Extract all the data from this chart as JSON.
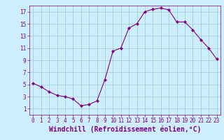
{
  "x": [
    0,
    1,
    2,
    3,
    4,
    5,
    6,
    7,
    8,
    9,
    10,
    11,
    12,
    13,
    14,
    15,
    16,
    17,
    18,
    19,
    20,
    21,
    22,
    23
  ],
  "y": [
    5.2,
    4.6,
    3.8,
    3.2,
    3.0,
    2.6,
    1.5,
    1.7,
    2.3,
    5.8,
    10.5,
    11.0,
    14.3,
    15.0,
    17.0,
    17.4,
    17.6,
    17.3,
    15.3,
    15.3,
    14.0,
    12.4,
    11.0,
    9.2
  ],
  "line_color": "#800080",
  "marker": "D",
  "marker_size": 2.2,
  "background_color": "#cceeff",
  "grid_color": "#99cccc",
  "xlabel": "Windchill (Refroidissement éolien,°C)",
  "xlim": [
    -0.5,
    23.5
  ],
  "ylim": [
    0,
    18
  ],
  "xticks": [
    0,
    1,
    2,
    3,
    4,
    5,
    6,
    7,
    8,
    9,
    10,
    11,
    12,
    13,
    14,
    15,
    16,
    17,
    18,
    19,
    20,
    21,
    22,
    23
  ],
  "yticks": [
    1,
    3,
    5,
    7,
    9,
    11,
    13,
    15,
    17
  ],
  "tick_color": "#800080",
  "label_color": "#800080",
  "tick_fontsize": 5.5,
  "xlabel_fontsize": 7.0,
  "linewidth": 0.8
}
